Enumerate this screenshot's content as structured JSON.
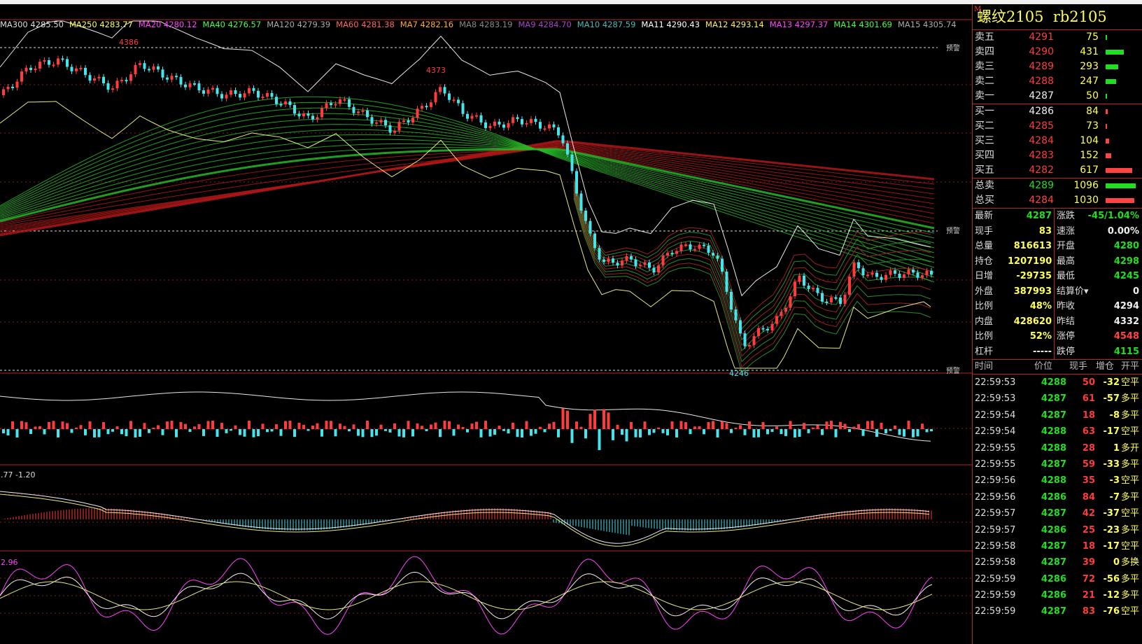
{
  "instrument": {
    "name": "螺纹2105",
    "code": "rb2105",
    "marker": "M"
  },
  "ma_legend": [
    {
      "label": "MA300 4285.50",
      "color": "#dddddd"
    },
    {
      "label": "MA250 4283.77",
      "color": "#ffff55"
    },
    {
      "label": "MA20 4280.12",
      "color": "#ff44ff"
    },
    {
      "label": "MA40 4276.57",
      "color": "#44ff44"
    },
    {
      "label": "MA120 4279.39",
      "color": "#aaaaaa"
    },
    {
      "label": "MA60 4281.38",
      "color": "#ff6666"
    },
    {
      "label": "MA7 4282.16",
      "color": "#ffaa33"
    },
    {
      "label": "MA8 4283.19",
      "color": "#888888"
    },
    {
      "label": "MA9 4284.70",
      "color": "#aa44cc"
    },
    {
      "label": "MA10 4287.59",
      "color": "#44bbbb"
    },
    {
      "label": "MA11 4290.43",
      "color": "#ffffff"
    },
    {
      "label": "MA12 4293.14",
      "color": "#ffee66"
    },
    {
      "label": "MA13 4297.37",
      "color": "#ff44ff"
    },
    {
      "label": "MA14 4301.69",
      "color": "#44ff44"
    },
    {
      "label": "MA15 4305.74",
      "color": "#aaaaaa"
    }
  ],
  "chart_labels": {
    "high1": "4386",
    "high2": "4373",
    "low1": "4246",
    "warn": "预警",
    "macd_vals": ".77   -1.20",
    "kdj_val": "2.96"
  },
  "orderbook": {
    "asks": [
      {
        "label": "卖五",
        "price": "4291",
        "vol": "75",
        "bar": 0.04
      },
      {
        "label": "卖四",
        "price": "4290",
        "vol": "431",
        "bar": 0.55
      },
      {
        "label": "卖三",
        "price": "4289",
        "vol": "293",
        "bar": 0.38
      },
      {
        "label": "卖二",
        "price": "4288",
        "vol": "247",
        "bar": 0.32
      },
      {
        "label": "卖一",
        "price": "4287",
        "vol": "50",
        "bar": 0.03
      }
    ],
    "bids": [
      {
        "label": "买一",
        "price": "4286",
        "vol": "84",
        "bar": 0.06
      },
      {
        "label": "买二",
        "price": "4285",
        "vol": "73",
        "bar": 0.05
      },
      {
        "label": "买三",
        "price": "4284",
        "vol": "104",
        "bar": 0.1
      },
      {
        "label": "买四",
        "price": "4283",
        "vol": "152",
        "bar": 0.17
      },
      {
        "label": "买五",
        "price": "4282",
        "vol": "617",
        "bar": 0.8
      }
    ],
    "totals": [
      {
        "label": "总卖",
        "price": "4289",
        "vol": "1096",
        "bar": 0.9,
        "color": "#22dd22"
      },
      {
        "label": "总买",
        "price": "4284",
        "vol": "1030",
        "bar": 0.85,
        "color": "#ff4444"
      }
    ]
  },
  "stats": [
    {
      "l1": "最新",
      "v1": "4287",
      "c1": "#22dd22",
      "l2": "涨跌",
      "v2": "-45/1.04%",
      "c2": "#22dd22"
    },
    {
      "l1": "现手",
      "v1": "83",
      "c1": "#ffff55",
      "l2": "速涨",
      "v2": "0.00%",
      "c2": "#eeeeee"
    },
    {
      "l1": "总量",
      "v1": "816613",
      "c1": "#ffff55",
      "l2": "开盘",
      "v2": "4280",
      "c2": "#22dd22"
    },
    {
      "l1": "持仓",
      "v1": "1207190",
      "c1": "#ffff55",
      "l2": "最高",
      "v2": "4298",
      "c2": "#22dd22"
    },
    {
      "l1": "日增",
      "v1": "-29735",
      "c1": "#ffff55",
      "l2": "最低",
      "v2": "4245",
      "c2": "#22dd22"
    },
    {
      "l1": "外盘",
      "v1": "387993",
      "c1": "#ffff55",
      "l2": "结算价▾",
      "v2": "0",
      "c2": "#eeeeee"
    },
    {
      "l1": "比例",
      "v1": "48%",
      "c1": "#ffff55",
      "l2": "昨收",
      "v2": "4294",
      "c2": "#eeeeee"
    },
    {
      "l1": "内盘",
      "v1": "428620",
      "c1": "#ffff55",
      "l2": "昨结",
      "v2": "4332",
      "c2": "#eeeeee"
    },
    {
      "l1": "比例",
      "v1": "52%",
      "c1": "#ffff55",
      "l2": "涨停",
      "v2": "4548",
      "c2": "#ff4444"
    },
    {
      "l1": "杠杆",
      "v1": "-----",
      "c1": "#eeeeee",
      "l2": "跌停",
      "v2": "4115",
      "c2": "#22dd22"
    }
  ],
  "ticks_header": {
    "time": "时间",
    "price": "价位",
    "vol": "现手",
    "oi": "增仓",
    "type": "开平"
  },
  "ticks": [
    {
      "time": "22:59:53",
      "price": "4288",
      "vol": "50",
      "oi": "-32",
      "type": "空平"
    },
    {
      "time": "22:59:53",
      "price": "4287",
      "vol": "61",
      "oi": "-57",
      "type": "多平"
    },
    {
      "time": "22:59:54",
      "price": "4287",
      "vol": "18",
      "oi": "-8",
      "type": "多平"
    },
    {
      "time": "22:59:54",
      "price": "4288",
      "vol": "63",
      "oi": "-17",
      "type": "空平"
    },
    {
      "time": "22:59:55",
      "price": "4288",
      "vol": "28",
      "oi": "1",
      "type": "多开"
    },
    {
      "time": "22:59:55",
      "price": "4287",
      "vol": "59",
      "oi": "-33",
      "type": "多平"
    },
    {
      "time": "22:59:56",
      "price": "4288",
      "vol": "35",
      "oi": "-3",
      "type": "空平"
    },
    {
      "time": "22:59:56",
      "price": "4286",
      "vol": "84",
      "oi": "-7",
      "type": "多平"
    },
    {
      "time": "22:59:57",
      "price": "4287",
      "vol": "42",
      "oi": "-37",
      "type": "空平"
    },
    {
      "time": "22:59:57",
      "price": "4286",
      "vol": "25",
      "oi": "-23",
      "type": "多平"
    },
    {
      "time": "22:59:58",
      "price": "4287",
      "vol": "18",
      "oi": "-17",
      "type": "空平"
    },
    {
      "time": "22:59:58",
      "price": "4287",
      "vol": "39",
      "oi": "0",
      "type": "多换"
    },
    {
      "time": "22:59:59",
      "price": "4286",
      "vol": "72",
      "oi": "-56",
      "type": "多平"
    },
    {
      "time": "22:59:59",
      "price": "4286",
      "vol": "21",
      "oi": "-12",
      "type": "多平"
    },
    {
      "time": "22:59:59",
      "price": "4287",
      "vol": "83",
      "oi": "-76",
      "type": "空平"
    }
  ],
  "colors": {
    "up": "#ff3b3b",
    "down": "#44e6ee",
    "border": "#b0282a",
    "grid": "#8a1a1a"
  }
}
